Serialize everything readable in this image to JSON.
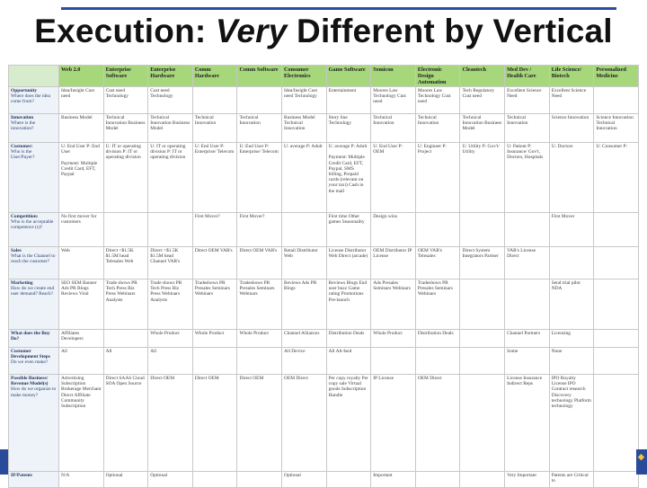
{
  "slide": {
    "title_part1": "Execution: ",
    "title_em": "Very",
    "title_part2": " Different by Vertical"
  },
  "table": {
    "columns": [
      "Web 2.0",
      "Enterprise Software",
      "Enterprise Hardware",
      "Comm Hardware",
      "Comm Software",
      "Consumer Electronics",
      "Game Software",
      "Semicon",
      "Electronic Design Automation",
      "Cleantech",
      "Med Dev / Health Care",
      "Life Science/ Biotech",
      "Personalized Medicine"
    ],
    "rows": [
      {
        "label": "Opportunity",
        "sub": "Where does the idea come from?",
        "cells": [
          "Idea/Insight Cust need",
          "Cust need Technology",
          "Cust need Technology",
          "",
          "",
          "Idea/Insight Cust need Technology",
          "Entertainment",
          "Moores Law Technology Cust need",
          "Moores Law Technology Cust need",
          "Tech Regulatory Cust need",
          "Excellent Science Need",
          "Excellent Science Need",
          ""
        ]
      },
      {
        "label": "Innovation",
        "sub": "Where is the innovation?",
        "cells": [
          "Business Model",
          "Technical Innovation Business Model",
          "Technical Innovation Business Model",
          "Technical Innovation",
          "Technical Innovation",
          "Business Model Technical Innovation",
          "Story line Technology",
          "Technical Innovation",
          "Technical Innovation",
          "Technical Innovation Business Model",
          "Technical Innovation",
          "Science Innovation",
          "Science Innovation Technical Innovation"
        ]
      },
      {
        "label": "Customer:",
        "sub": "Who is the User/Payer?",
        "cells": [
          "U: End User P: End User\n\nPayment: Multiple Credit Card, EFT, Paypal",
          "U: IT or operating division P: IT or operating division",
          "U: IT or operating division P: IT or operating division",
          "U: End User P: Enterprise/ Telecom",
          "U: End User P: Enterprise/ Telecom",
          "U: average P: Adult",
          "U: average P: Adult\n\nPayment: Multiple Credit Card, EFT, Paypal, SMS billing, Prepaid cards (relevant on your taxi) Cash in the mall",
          "U: End User P: OEM",
          "U: Engineer P: Project",
          "U: Utility P: Gov't/ Utility",
          "U: Patient P: Insurance/ Gov't, Doctors, Hospitals",
          "U: Doctors",
          "U: Consumer P:"
        ]
      },
      {
        "label": "Competition:",
        "sub": "Who is the acceptable competence (s)?",
        "cells": [
          "No first mover for customers",
          "",
          "",
          "First Mover?",
          "First Mover?",
          "",
          "First time Other games Seasonality",
          "Design wins",
          "",
          "",
          "",
          "First Mover",
          ""
        ]
      },
      {
        "label": "Sales",
        "sub": "What is the Channel to reach the customer?",
        "cells": [
          "Web",
          "Direct <$1.5K $1.5M head Telesales Web",
          "Direct <$1.5K $1.5M head Channel VAR's",
          "Direct OEM VAR's",
          "Direct OEM VAR's",
          "Retail Distributor Web",
          "License Distributor Web Direct (arcade)",
          "OEM Distributor IP License",
          "OEM VAR's Telesales",
          "Direct System Integrators Partner",
          "VAR's License Direct",
          "",
          ""
        ]
      },
      {
        "label": "Marketing",
        "sub": "How do we create end user demand? Reach?",
        "cells": [
          "SEO SEM Banner Ads PR Blogs Reviews Viral",
          "Trade shows PR Tech Press Biz Press Webinars Analysts",
          "Trade shows PR Tech Press Biz Press Webinars Analysts",
          "Tradeshows PR Presales Seminars Webinars",
          "Tradeshows PR Presales Seminars Webinars",
          "Reviews Ads PR Blogs",
          "Reviews Blogs End user buzz Game rating Promotions Pre-launch",
          "Ads Presales Seminars Webinars",
          "Tradeshows PR Presales Seminars Webinars",
          "",
          "",
          "Send trial pilot NDA",
          ""
        ]
      },
      {
        "label": "What does the Buy Do?",
        "sub": "",
        "cells": [
          "Affiliates Developers",
          "",
          "Whole Product",
          "Whole Product",
          "Whole Product",
          "Channel Alliances",
          "Distribution Deals",
          "Whole Product",
          "Distribution Deals",
          "",
          "Channel Partners",
          "Licensing",
          ""
        ]
      },
      {
        "label": "Customer Development Steps",
        "sub": "Do we even make?",
        "cells": [
          "All",
          "All",
          "All",
          "",
          "",
          "All Device",
          "All Alt-Ised",
          "",
          "",
          "",
          "Some",
          "None",
          ""
        ]
      },
      {
        "label": "Possible Business/ Revenue Model(s)",
        "sub": "How do we organize to make money?",
        "cells": [
          "Advertising Subscription Brokerage Merchant Direct Affiliate Community Subscription",
          "Direct SAAS Cloud SOA Open Source",
          "Direct OEM",
          "Direct OEM",
          "Direct OEM",
          "OEM Direct",
          "Per copy royalty Per copy sale Virtual goods Subscription Handle",
          "IP License",
          "OEM Direct",
          "",
          "License Insurance Indirect Reps",
          "IPO Royalty License IPO Contract research Discovery technology Platform technology",
          ""
        ]
      },
      {
        "label": "IP/Patents",
        "sub": "",
        "cells": [
          "N/A",
          "Optional",
          "Optional",
          "",
          "",
          "Optional",
          "",
          "Important",
          "",
          "",
          "Very Important",
          "Patents are Critical to",
          ""
        ]
      }
    ]
  }
}
